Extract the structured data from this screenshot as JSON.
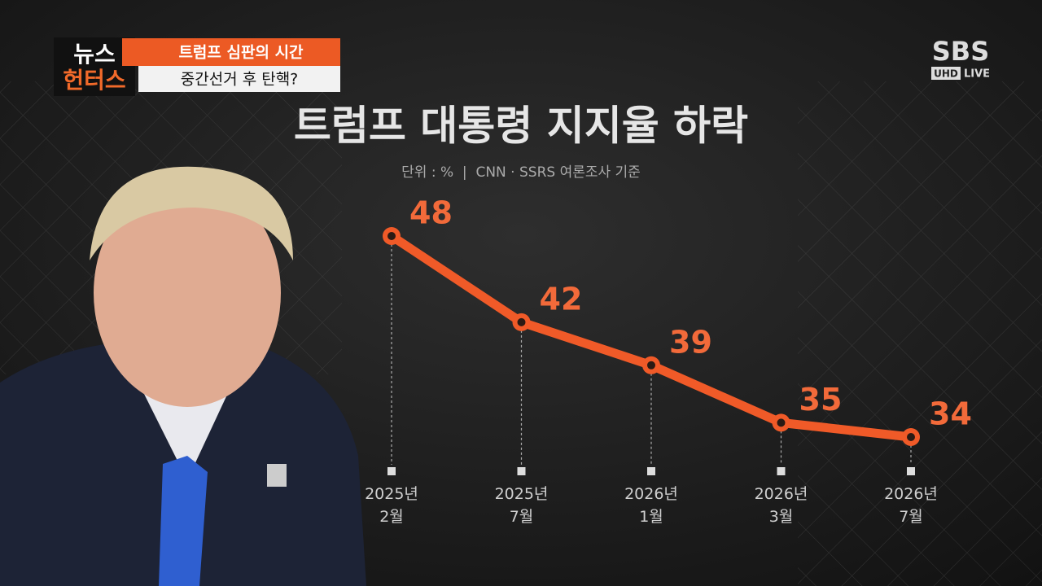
{
  "logo": {
    "top": "뉴스",
    "bottom": "헌터스"
  },
  "banner": {
    "headline": "트럼프 심판의 시간",
    "subline": "중간선거 후 탄핵?"
  },
  "broadcaster": {
    "name": "SBS",
    "badge": "UHD",
    "live": "LIVE"
  },
  "chart_data": {
    "type": "line",
    "title": "트럼프 대통령 지지율 하락",
    "subtitle": "단위 : %  |  CNN · SSRS 여론조사 기준",
    "categories": [
      "2025년\n2월",
      "2025년\n7월",
      "2026년\n1월",
      "2026년\n3월",
      "2026년\n7월"
    ],
    "values": [
      48,
      42,
      39,
      35,
      34
    ],
    "color": "#f05a28"
  }
}
